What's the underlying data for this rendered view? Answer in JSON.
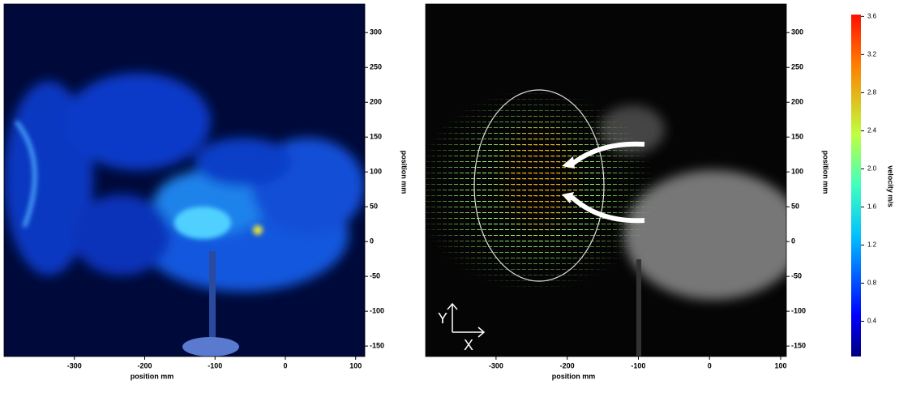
{
  "chart_data": [
    {
      "type": "image",
      "xlabel": "position mm",
      "ylabel": "position mm",
      "xlim": [
        -400,
        113
      ],
      "xticks": [
        -300,
        -200,
        -100,
        0,
        100
      ],
      "ylim": [
        -165,
        341
      ],
      "yticks": [
        -150,
        -100,
        -50,
        0,
        50,
        100,
        150,
        200,
        250,
        300
      ]
    },
    {
      "type": "vector",
      "xlabel": "position mm",
      "ylabel": "position mm",
      "xlim": [
        -399,
        108
      ],
      "xticks": [
        -300,
        -200,
        -100,
        0,
        100
      ],
      "ylim": [
        -165,
        341
      ],
      "yticks": [
        -150,
        -100,
        -50,
        0,
        50,
        100,
        150,
        200,
        250,
        300
      ],
      "axis_symbol": [
        "Y",
        "X"
      ],
      "colorbar": {
        "label": "velocity m/s",
        "lim": [
          0.03,
          3.62
        ],
        "ticks": [
          0.4,
          0.8,
          1.2,
          1.6,
          {
            "value": 2,
            "label": "2.0"
          },
          2.4,
          2.8,
          3.2,
          3.6
        ]
      }
    }
  ]
}
